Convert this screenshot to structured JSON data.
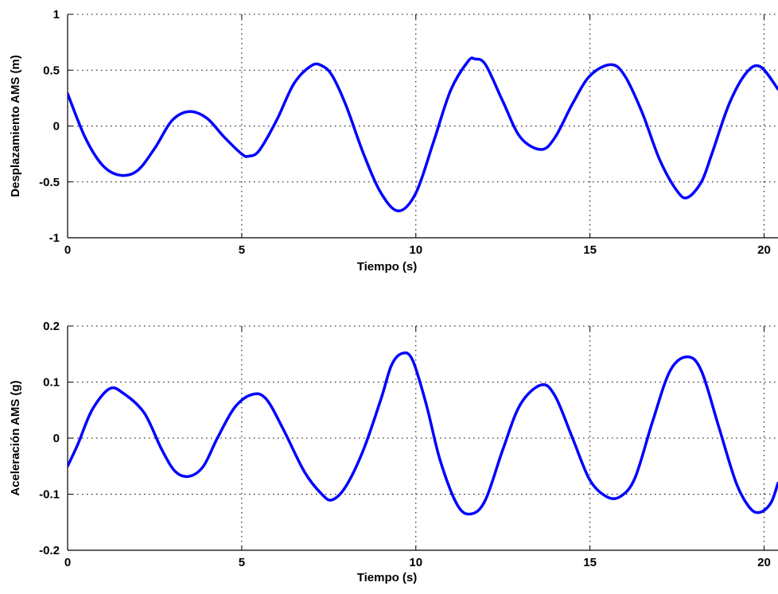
{
  "chart_data": [
    {
      "type": "line",
      "title": "",
      "xlabel": "Tiempo (s)",
      "ylabel": "Desplazamiento AMS (m)",
      "xlim": [
        0,
        20.4
      ],
      "ylim": [
        -1,
        1
      ],
      "xticks": [
        0,
        5,
        10,
        15,
        20
      ],
      "yticks": [
        -1,
        -0.5,
        0,
        0.5,
        1
      ],
      "xtick_labels": [
        "0",
        "5",
        "10",
        "15",
        "20"
      ],
      "ytick_labels": [
        "-1",
        "-0.5",
        "0",
        "0.5",
        "1"
      ],
      "grid": true,
      "color": "#0000ff",
      "series": [
        {
          "x": [
            0,
            0.5,
            1.0,
            1.5,
            2.0,
            2.5,
            3.0,
            3.5,
            4.0,
            4.5,
            5.0,
            5.2,
            5.5,
            6.0,
            6.5,
            7.0,
            7.3,
            7.6,
            8.0,
            8.5,
            9.0,
            9.5,
            10.0,
            10.5,
            11.0,
            11.5,
            11.7,
            12.0,
            12.5,
            13.0,
            13.6,
            14.0,
            14.5,
            15.0,
            15.6,
            16.0,
            16.5,
            17.0,
            17.5,
            17.8,
            18.2,
            18.5,
            19.0,
            19.5,
            19.9,
            20.4
          ],
          "y": [
            0.29,
            -0.1,
            -0.35,
            -0.44,
            -0.4,
            -0.2,
            0.05,
            0.13,
            0.07,
            -0.1,
            -0.25,
            -0.27,
            -0.22,
            0.05,
            0.38,
            0.54,
            0.54,
            0.45,
            0.18,
            -0.25,
            -0.6,
            -0.76,
            -0.6,
            -0.15,
            0.32,
            0.58,
            0.6,
            0.55,
            0.22,
            -0.1,
            -0.21,
            -0.1,
            0.2,
            0.45,
            0.55,
            0.45,
            0.12,
            -0.3,
            -0.58,
            -0.64,
            -0.5,
            -0.25,
            0.2,
            0.48,
            0.53,
            0.33
          ]
        }
      ]
    },
    {
      "type": "line",
      "title": "",
      "xlabel": "Tiempo (s)",
      "ylabel": "Aceleración AMS (g)",
      "xlim": [
        0,
        20.4
      ],
      "ylim": [
        -0.2,
        0.2
      ],
      "xticks": [
        0,
        5,
        10,
        15,
        20
      ],
      "yticks": [
        -0.2,
        -0.1,
        0,
        0.1,
        0.2
      ],
      "xtick_labels": [
        "0",
        "5",
        "10",
        "15",
        "20"
      ],
      "ytick_labels": [
        "-0.2",
        "-0.1",
        "0",
        "0.1",
        "0.2"
      ],
      "grid": true,
      "color": "#0000ff",
      "series": [
        {
          "x": [
            0,
            0.3,
            0.7,
            1.2,
            1.6,
            2.2,
            2.7,
            3.1,
            3.5,
            3.9,
            4.3,
            4.8,
            5.3,
            5.7,
            6.2,
            6.8,
            7.3,
            7.6,
            8.0,
            8.5,
            9.0,
            9.3,
            9.6,
            9.9,
            10.3,
            10.7,
            11.2,
            11.6,
            12.0,
            12.5,
            13.0,
            13.6,
            14.0,
            14.5,
            15.0,
            15.5,
            15.9,
            16.3,
            16.8,
            17.3,
            17.8,
            18.2,
            18.7,
            19.2,
            19.6,
            19.9,
            20.2,
            20.4
          ],
          "y": [
            -0.05,
            -0.01,
            0.05,
            0.088,
            0.08,
            0.045,
            -0.02,
            -0.06,
            -0.068,
            -0.05,
            0.0,
            0.055,
            0.078,
            0.07,
            0.015,
            -0.06,
            -0.1,
            -0.11,
            -0.085,
            -0.02,
            0.07,
            0.13,
            0.151,
            0.14,
            0.06,
            -0.04,
            -0.12,
            -0.135,
            -0.11,
            -0.02,
            0.06,
            0.095,
            0.075,
            0.0,
            -0.075,
            -0.105,
            -0.103,
            -0.07,
            0.03,
            0.12,
            0.145,
            0.12,
            0.02,
            -0.08,
            -0.125,
            -0.132,
            -0.115,
            -0.08
          ]
        }
      ]
    }
  ]
}
